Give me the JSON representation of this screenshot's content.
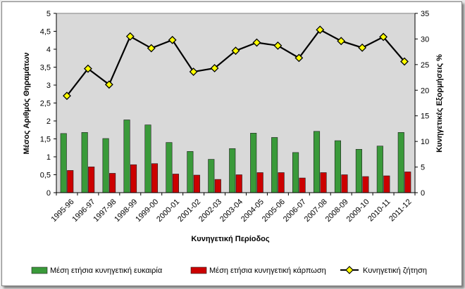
{
  "chart_data": {
    "type": "bar",
    "categories": [
      "1995-96",
      "1996-97",
      "1997-98",
      "1998-99",
      "1999-00",
      "2000-01",
      "2001-02",
      "2002-03",
      "2003-04",
      "2004-05",
      "2005-06",
      "2006-07",
      "2007-08",
      "2008-09",
      "2009-10",
      "2010-11",
      "2011-12"
    ],
    "series": [
      {
        "name": "Μέση ετήσια κυνηγετική ευκαιρία",
        "type": "bar",
        "axis": "left",
        "color": "#3a9a3a",
        "values": [
          1.65,
          1.68,
          1.51,
          2.03,
          1.89,
          1.4,
          1.15,
          0.93,
          1.23,
          1.66,
          1.54,
          1.12,
          1.71,
          1.45,
          1.21,
          1.3,
          1.68
        ]
      },
      {
        "name": "Μέση ετήσια κυνηγετική κάρπωση",
        "type": "bar",
        "axis": "left",
        "color": "#cc0000",
        "values": [
          0.62,
          0.72,
          0.54,
          0.78,
          0.81,
          0.52,
          0.49,
          0.37,
          0.5,
          0.56,
          0.56,
          0.41,
          0.56,
          0.5,
          0.45,
          0.47,
          0.58
        ]
      },
      {
        "name": "Κυνηγετική ζήτηση",
        "type": "line",
        "axis": "right",
        "color": "#000000",
        "marker_color": "#ffff00",
        "values": [
          18.9,
          24.2,
          21.1,
          30.5,
          28.2,
          29.8,
          23.6,
          24.3,
          27.7,
          29.3,
          28.7,
          26.3,
          31.8,
          29.6,
          28.3,
          30.4,
          25.6
        ]
      }
    ],
    "title": "",
    "xlabel": "Κυνηγετική Περίοδος",
    "ylabel": "Μέσος Αριθμός Θηραμάτων",
    "y2label": "Κυνηγετικές Εξορμήσεις %",
    "ylim": [
      0,
      5
    ],
    "yticks": [
      "0",
      "0,5",
      "1",
      "1,5",
      "2",
      "2,5",
      "3",
      "3,5",
      "4",
      "4,5",
      "5"
    ],
    "y2lim": [
      0,
      35
    ],
    "y2ticks": [
      "0",
      "5",
      "10",
      "15",
      "20",
      "25",
      "30",
      "35"
    ],
    "grid": false,
    "plot_background": "#d9d9d9",
    "legend_position": "bottom"
  }
}
